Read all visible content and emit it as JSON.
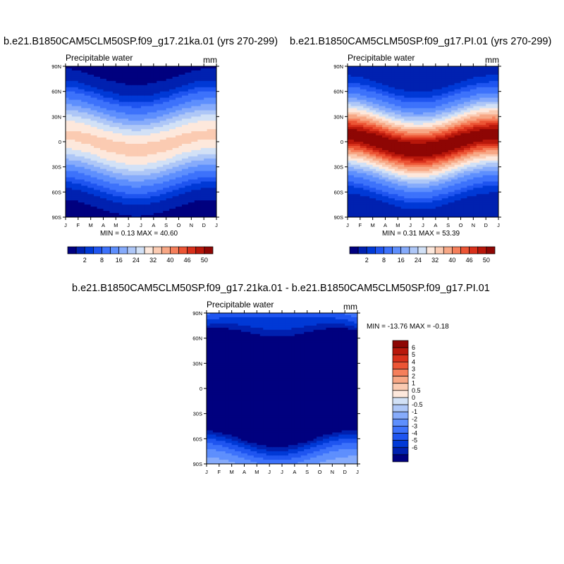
{
  "palette": [
    "#00007f",
    "#0021b0",
    "#0039d6",
    "#1f55f0",
    "#3d72fb",
    "#5e8ffd",
    "#86abfb",
    "#aec7f7",
    "#d2e1f6",
    "#fde8dc",
    "#fbcbb2",
    "#f7a785",
    "#f57f5b",
    "#ec5535",
    "#d8301b",
    "#b8170b",
    "#8e0604"
  ],
  "diff_palette": [
    "#00007f",
    "#0021b0",
    "#0039d6",
    "#1f55f0",
    "#3d72fb",
    "#5e8ffd",
    "#86abfb",
    "#aec7f7",
    "#d2e1f6",
    "#fde8dc",
    "#fbcbb2",
    "#f7a785",
    "#f57f5b",
    "#ec5535",
    "#d8301b",
    "#b8170b",
    "#8e0604"
  ],
  "chart_data": [
    {
      "type": "heatmap",
      "title": "b.e21.B1850CAM5CLM50SP.f09_g17.21ka.01 (yrs 270-299)",
      "subtitle": "Precipitable water",
      "units": "mm",
      "min_label": "MIN =",
      "min_value": "0.13",
      "max_label": "MAX =",
      "max_value": "40.60",
      "x_ticks": [
        "J",
        "F",
        "M",
        "A",
        "M",
        "J",
        "J",
        "A",
        "S",
        "O",
        "N",
        "D",
        "J"
      ],
      "y_ticks": [
        "90N",
        "60N",
        "30N",
        "0",
        "30S",
        "60S",
        "90S"
      ],
      "lat_range": [
        -90,
        90
      ],
      "colorbar_labels": [
        "2",
        "8",
        "16",
        "24",
        "32",
        "40",
        "46",
        "50"
      ],
      "field": {
        "equator_peak": 33,
        "peak_lat_amplitude": 10,
        "pole_min": 1,
        "width": 30
      }
    },
    {
      "type": "heatmap",
      "title": "b.e21.B1850CAM5CLM50SP.f09_g17.PI.01 (yrs 270-299)",
      "subtitle": "Precipitable water",
      "units": "mm",
      "min_label": "MIN =",
      "min_value": "0.31",
      "max_label": "MAX =",
      "max_value": "53.39",
      "x_ticks": [
        "J",
        "F",
        "M",
        "A",
        "M",
        "J",
        "J",
        "A",
        "S",
        "O",
        "N",
        "D",
        "J"
      ],
      "y_ticks": [
        "90N",
        "60N",
        "30N",
        "0",
        "30S",
        "60S",
        "90S"
      ],
      "lat_range": [
        -90,
        90
      ],
      "colorbar_labels": [
        "2",
        "8",
        "16",
        "24",
        "32",
        "40",
        "46",
        "50"
      ],
      "field": {
        "equator_peak": 52,
        "peak_lat_amplitude": 10,
        "pole_min": 2,
        "width": 28
      }
    },
    {
      "type": "heatmap",
      "title": "b.e21.B1850CAM5CLM50SP.f09_g17.21ka.01 - b.e21.B1850CAM5CLM50SP.f09_g17.PI.01",
      "subtitle": "Precipitable water",
      "units": "mm",
      "min_label": "MIN =",
      "min_value": "-13.76",
      "max_label": "MAX =",
      "max_value": "-0.18",
      "x_ticks": [
        "J",
        "F",
        "M",
        "A",
        "M",
        "J",
        "J",
        "A",
        "S",
        "O",
        "N",
        "D",
        "J"
      ],
      "y_ticks": [
        "90N",
        "60N",
        "30N",
        "0",
        "30S",
        "60S",
        "90S"
      ],
      "lat_range": [
        -90,
        90
      ],
      "colorbar_labels": [
        "6",
        "5",
        "4",
        "3",
        "2",
        "1",
        "0.5",
        "0",
        "-0.5",
        "-1",
        "-2",
        "-3",
        "-4",
        "-5",
        "-6"
      ],
      "diff_levels": [
        6,
        5,
        4,
        3,
        2,
        1,
        0.5,
        0,
        -0.5,
        -1,
        -2,
        -3,
        -4,
        -5,
        -6,
        -7
      ]
    }
  ]
}
